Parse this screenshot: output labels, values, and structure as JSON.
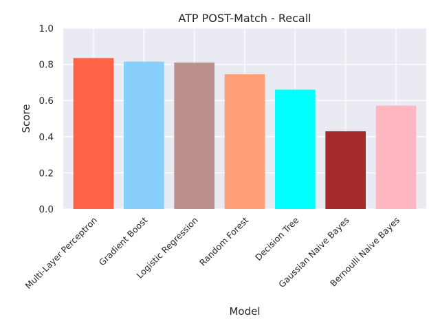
{
  "chart_data": {
    "type": "bar",
    "title": "ATP POST-Match - Recall",
    "xlabel": "Model",
    "ylabel": "Score",
    "ylim": [
      0,
      1.0
    ],
    "yticks": [
      "0.0",
      "0.2",
      "0.4",
      "0.6",
      "0.8",
      "1.0"
    ],
    "grid": true,
    "categories": [
      "Multi-Layer Perceptron",
      "Gradient Boost",
      "Logistic Regression",
      "Random Forest",
      "Decision Tree",
      "Gaussian Naive Bayes",
      "Bernoulli Naive Bayes"
    ],
    "values": [
      0.835,
      0.815,
      0.81,
      0.745,
      0.66,
      0.43,
      0.572
    ],
    "colors": [
      "#ff6347",
      "#87cefa",
      "#bc8f8f",
      "#ffa07a",
      "#00ffff",
      "#a52a2a",
      "#ffb6c1"
    ],
    "plot_background": "#eaeaf2"
  }
}
